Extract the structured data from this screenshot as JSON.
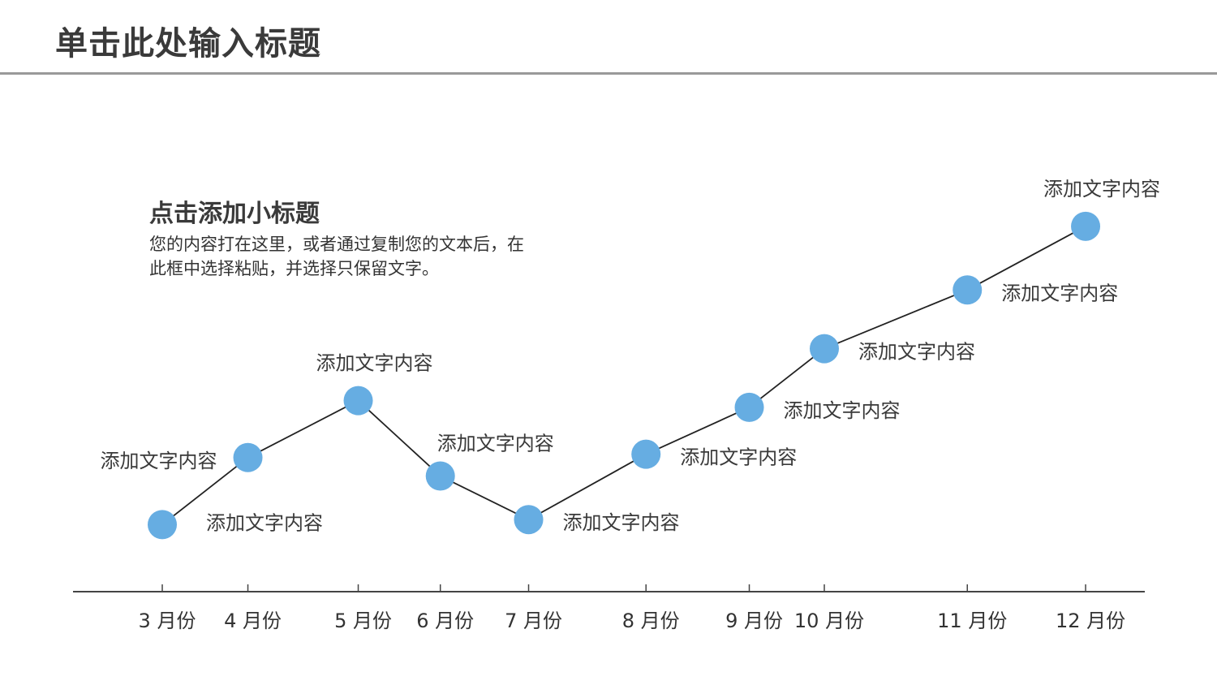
{
  "header": {
    "title": "单击此处输入标题"
  },
  "intro": {
    "subtitle": "点击添加小标题",
    "body": "您的内容打在这里，或者通过复制您的文本后，在此框中选择粘贴，并选择只保留文字。"
  },
  "colors": {
    "point": "#66ade2",
    "line": "#222222",
    "axis": "#444444",
    "rule": "#999999"
  },
  "chart_data": {
    "type": "line",
    "categories": [
      "3 月份",
      "4 月份",
      "5 月份",
      "6 月份",
      "7 月份",
      "8 月份",
      "9 月份",
      "10 月份",
      "11 月份",
      "12 月份"
    ],
    "x": [
      1.0,
      1.97,
      3.22,
      4.15,
      5.15,
      6.48,
      7.65,
      8.5,
      10.12,
      11.46
    ],
    "values": [
      2.0,
      4.0,
      5.7,
      3.45,
      2.15,
      4.1,
      5.5,
      7.25,
      9.0,
      10.9
    ],
    "ylim": [
      0,
      12
    ],
    "xlim": [
      0,
      12.1
    ],
    "point_labels": [
      "添加文字内容",
      "添加文字内容",
      "添加文字内容",
      "添加文字内容",
      "添加文字内容",
      "添加文字内容",
      "添加文字内容",
      "添加文字内容",
      "添加文字内容",
      "添加文字内容"
    ],
    "label_placement": [
      "right-below",
      "left",
      "above",
      "above-right",
      "right",
      "right",
      "right",
      "right",
      "right",
      "above"
    ],
    "grid": false,
    "title": "",
    "xlabel": "",
    "ylabel": ""
  }
}
